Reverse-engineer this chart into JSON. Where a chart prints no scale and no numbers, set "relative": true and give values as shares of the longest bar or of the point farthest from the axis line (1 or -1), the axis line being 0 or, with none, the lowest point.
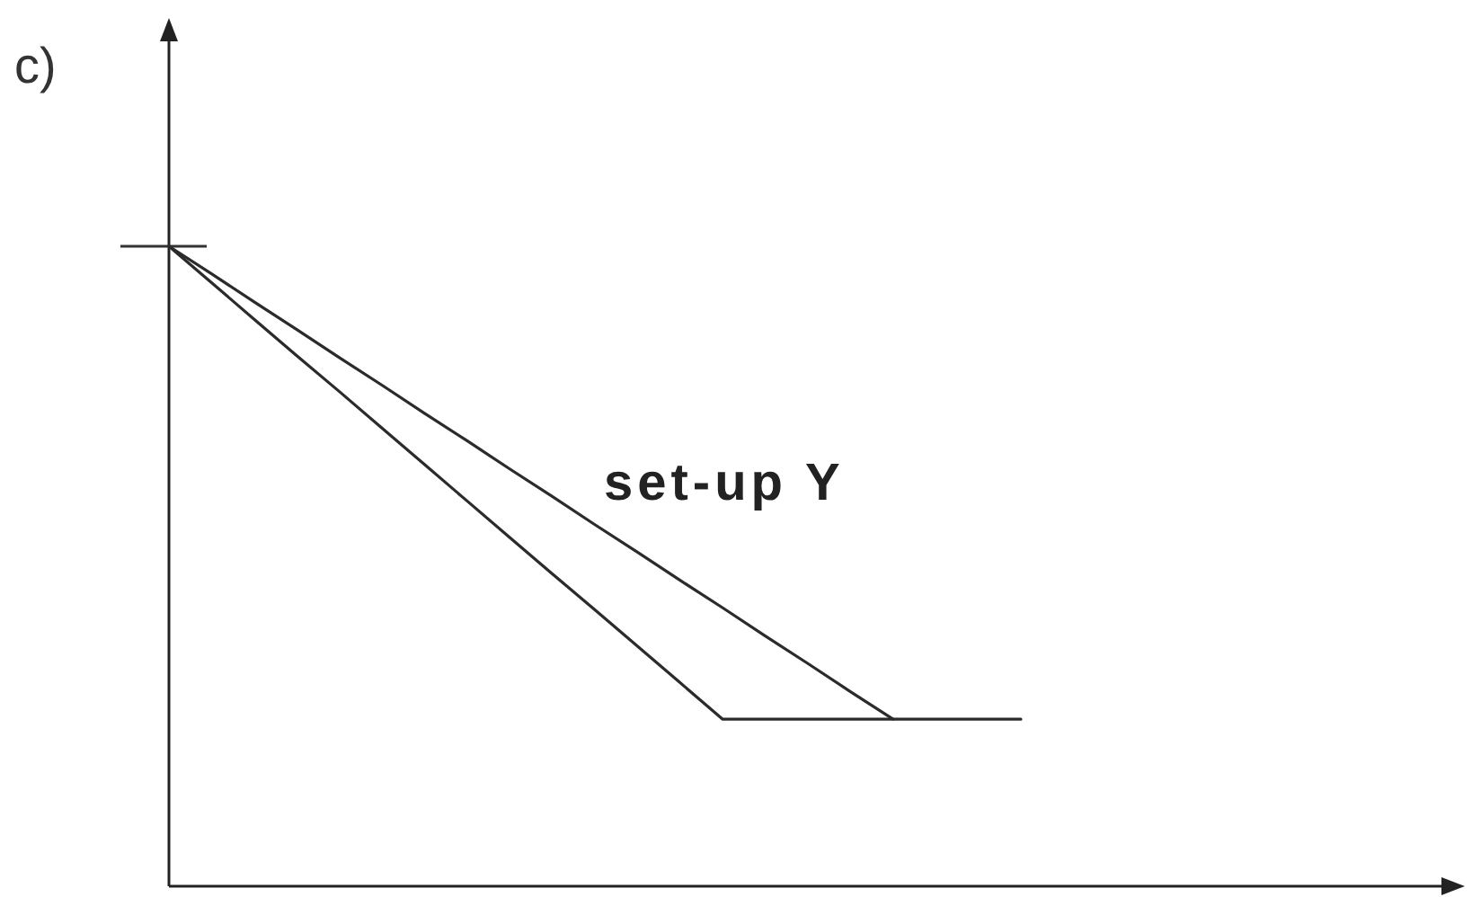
{
  "chart_data": {
    "type": "line",
    "title": "c)",
    "relative": true,
    "categories": [
      null,
      null,
      null,
      null,
      null,
      null,
      null,
      null,
      null,
      null,
      null,
      null,
      null,
      null,
      null,
      null,
      null,
      null,
      null,
      null,
      null
    ],
    "series": [
      {
        "color": "#2b2b2b",
        "values": [
          1,
          0.943,
          0.886,
          0.829,
          0.773,
          0.716,
          0.659,
          0.602,
          0.545,
          0.488,
          0.432,
          0.375,
          0.318,
          0.261,
          0.261,
          0.261,
          0.261,
          0.261,
          0.261,
          0.261,
          0.261
        ]
      },
      {
        "color": "#2b2b2b",
        "values": [
          1,
          0.957,
          0.913,
          0.87,
          0.826,
          0.783,
          0.739,
          0.696,
          0.652,
          0.609,
          0.565,
          0.522,
          0.478,
          0.435,
          0.391,
          0.348,
          0.304,
          0.261,
          null,
          null,
          null
        ]
      }
    ],
    "annotations": [
      "set-up Y"
    ]
  }
}
